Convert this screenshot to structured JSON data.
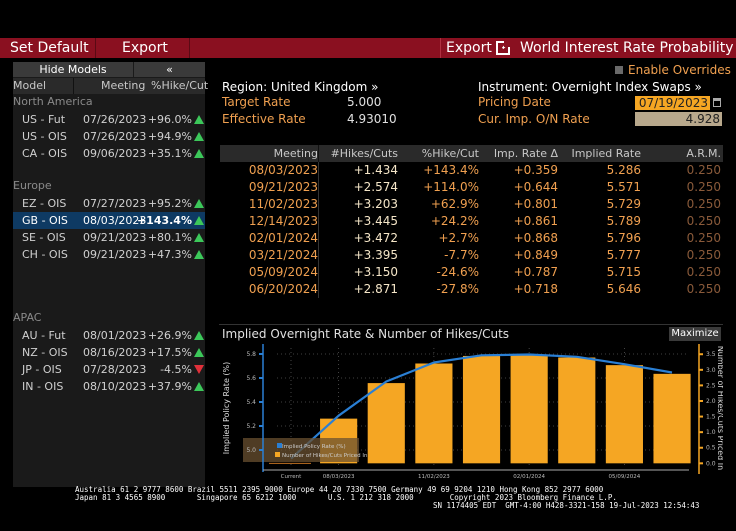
{
  "toolbar": {
    "set_default": "Set Default",
    "export_left": "Export",
    "export_right": "Export",
    "export_icon": "export-icon",
    "app_title": "World Interest Rate Probability",
    "bar_color": "#8a1020"
  },
  "left_panel": {
    "hide_models": "Hide Models",
    "collapse": "«",
    "headers": {
      "model": "Model",
      "meeting": "Meeting",
      "pct": "%Hike/Cut"
    },
    "groups": [
      {
        "region": "North America",
        "rows": [
          {
            "model": "US - Fut",
            "meeting": "07/26/2023",
            "pct": "+96.0%",
            "dir": "up"
          },
          {
            "model": "US - OIS",
            "meeting": "07/26/2023",
            "pct": "+94.9%",
            "dir": "up"
          },
          {
            "model": "CA - OIS",
            "meeting": "09/06/2023",
            "pct": "+35.1%",
            "dir": "up"
          }
        ]
      },
      {
        "region": "Europe",
        "rows": [
          {
            "model": "EZ - OIS",
            "meeting": "07/27/2023",
            "pct": "+95.2%",
            "dir": "up"
          },
          {
            "model": "GB - OIS",
            "meeting": "08/03/2023",
            "pct": "+143.4%",
            "dir": "up",
            "selected": true
          },
          {
            "model": "SE - OIS",
            "meeting": "09/21/2023",
            "pct": "+80.1%",
            "dir": "up"
          },
          {
            "model": "CH - OIS",
            "meeting": "09/21/2023",
            "pct": "+47.3%",
            "dir": "up"
          }
        ]
      },
      {
        "region": "APAC",
        "rows": [
          {
            "model": "AU - Fut",
            "meeting": "08/01/2023",
            "pct": "+26.9%",
            "dir": "up"
          },
          {
            "model": "NZ - OIS",
            "meeting": "08/16/2023",
            "pct": "+17.5%",
            "dir": "up"
          },
          {
            "model": "JP - OIS",
            "meeting": "07/28/2023",
            "pct": "-4.5%",
            "dir": "down"
          },
          {
            "model": "IN - OIS",
            "meeting": "08/10/2023",
            "pct": "+37.9%",
            "dir": "up"
          }
        ]
      }
    ]
  },
  "info": {
    "region": "Region: United Kingdom »",
    "target_rate_label": "Target Rate",
    "target_rate": "5.000",
    "effective_rate_label": "Effective Rate",
    "effective_rate": "4.93010",
    "enable_overrides": "Enable Overrides",
    "instrument": "Instrument: Overnight Index Swaps »",
    "pricing_date_label": "Pricing Date",
    "pricing_date": "07/19/2023",
    "cur_imp_label": "Cur. Imp. O/N Rate",
    "cur_imp": "4.928"
  },
  "table": {
    "headers": [
      "Meeting",
      "#Hikes/Cuts",
      "%Hike/Cut",
      "Imp. Rate Δ",
      "Implied Rate",
      "A.R.M."
    ],
    "rows": [
      [
        "08/03/2023",
        "+1.434",
        "+143.4%",
        "+0.359",
        "5.286",
        "0.250"
      ],
      [
        "09/21/2023",
        "+2.574",
        "+114.0%",
        "+0.644",
        "5.571",
        "0.250"
      ],
      [
        "11/02/2023",
        "+3.203",
        "+62.9%",
        "+0.801",
        "5.729",
        "0.250"
      ],
      [
        "12/14/2023",
        "+3.445",
        "+24.2%",
        "+0.861",
        "5.789",
        "0.250"
      ],
      [
        "02/01/2024",
        "+3.472",
        "+2.7%",
        "+0.868",
        "5.796",
        "0.250"
      ],
      [
        "03/21/2024",
        "+3.395",
        "-7.7%",
        "+0.849",
        "5.777",
        "0.250"
      ],
      [
        "05/09/2024",
        "+3.150",
        "-24.6%",
        "+0.787",
        "5.715",
        "0.250"
      ],
      [
        "06/20/2024",
        "+2.871",
        "-27.8%",
        "+0.718",
        "5.646",
        "0.250"
      ]
    ]
  },
  "chart": {
    "title": "Implied Overnight Rate & Number of Hikes/Cuts",
    "maximize": "Maximize"
  },
  "chart_data": {
    "type": "bar",
    "title": "Implied Overnight Rate & Number of Hikes/Cuts",
    "categories": [
      "Current",
      "08/03/2023",
      "09/21/2023",
      "11/02/2023",
      "12/14/2023",
      "02/01/2024",
      "03/21/2024",
      "05/09/2024",
      "06/20/2024"
    ],
    "x_tick_labels": [
      "Current",
      "08/03/2023",
      "11/02/2023",
      "02/01/2024",
      "05/09/2024"
    ],
    "series": [
      {
        "name": "Implied Policy Rate (%)",
        "type": "line",
        "axis": "left",
        "color": "#2a7fd4",
        "values": [
          4.928,
          5.286,
          5.571,
          5.729,
          5.789,
          5.796,
          5.777,
          5.715,
          5.646
        ]
      },
      {
        "name": "Number of Hikes/Cuts Priced In",
        "type": "bar",
        "axis": "right",
        "color": "#f5a623",
        "values": [
          0,
          1.434,
          2.574,
          3.203,
          3.445,
          3.472,
          3.395,
          3.15,
          2.871
        ]
      }
    ],
    "ylabel": "Implied Policy Rate (%)",
    "ylim": [
      4.85,
      5.85
    ],
    "yticks": [
      "5.0",
      "5.2",
      "5.4",
      "5.6",
      "5.8"
    ],
    "y2label": "Number of Hikes/Cuts Priced In",
    "y2lim": [
      -0.15,
      3.7
    ],
    "y2ticks": [
      "0.0",
      "0.5",
      "1.0",
      "1.5",
      "2.0",
      "2.5",
      "3.0",
      "3.5"
    ],
    "grid": true,
    "legend": "bottom-left"
  },
  "footer": {
    "line1": "Australia 61 2 9777 8600 Brazil 5511 2395 9000 Europe 44 20 7330 7500 Germany 49 69 9204 1210 Hong Kong 852 2977 6000",
    "line2": "Japan 81 3 4565 8900       Singapore 65 6212 1000       U.S. 1 212 318 2000        Copyright 2023 Bloomberg Finance L.P.",
    "line3": "SN 1174405 EDT  GMT-4:00 H428-3321-158 19-Jul-2023 12:54:43"
  }
}
